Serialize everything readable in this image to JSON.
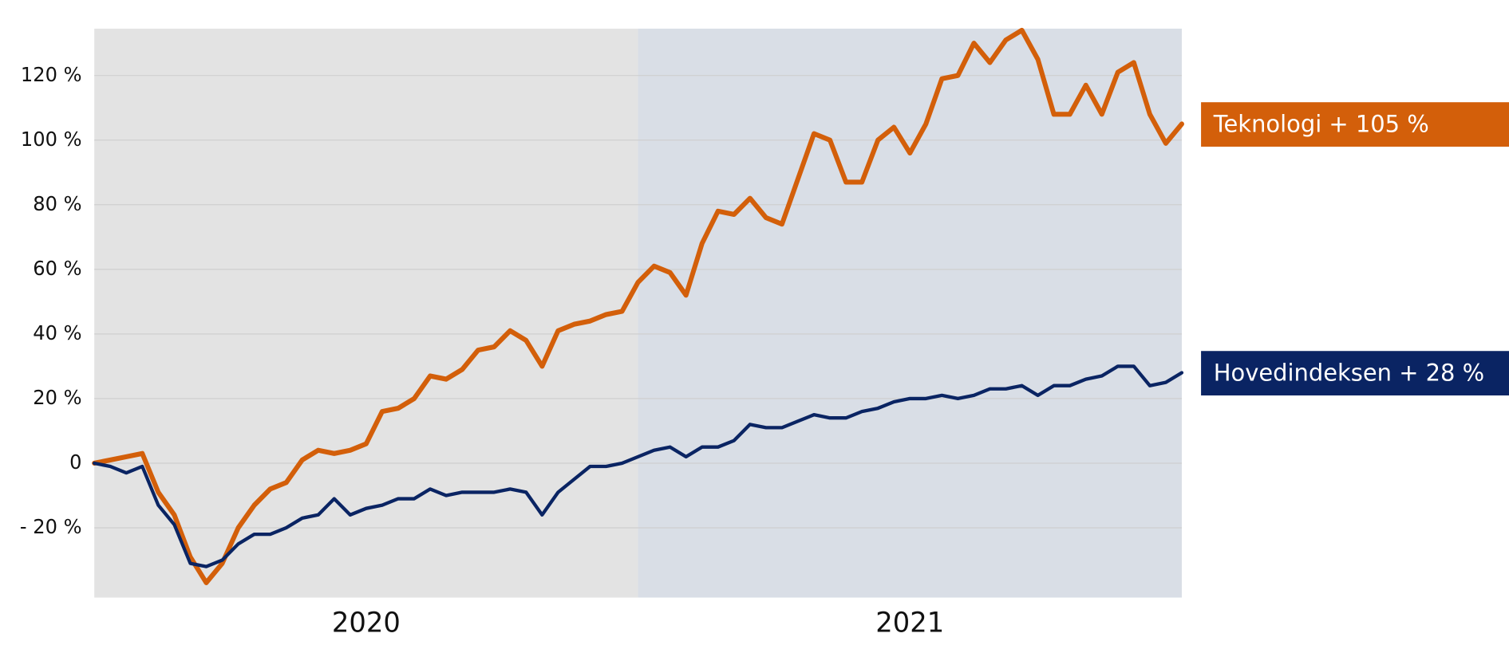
{
  "chart_data": {
    "type": "line",
    "periods": [
      {
        "label": "2020",
        "color": "#e3e3e3"
      },
      {
        "label": "2021",
        "color": "#d9dee6"
      }
    ],
    "series": [
      {
        "name": "Teknologi",
        "label": "Teknologi + 105 %",
        "color": "#d35f0a",
        "values": [
          0,
          1,
          2,
          3,
          -9,
          -16,
          -29,
          -37,
          -31,
          -20,
          -13,
          -8,
          -6,
          1,
          4,
          3,
          4,
          6,
          16,
          17,
          20,
          27,
          26,
          29,
          35,
          36,
          41,
          38,
          30,
          41,
          43,
          44,
          46,
          47,
          56,
          61,
          59,
          52,
          68,
          78,
          77,
          82,
          76,
          74,
          88,
          102,
          100,
          87,
          87,
          100,
          104,
          96,
          105,
          119,
          120,
          130,
          124,
          131,
          134,
          125,
          108,
          108,
          117,
          108,
          121,
          124,
          108,
          99,
          105
        ]
      },
      {
        "name": "Hovedindeksen",
        "label": "Hovedindeksen + 28 %",
        "color": "#0a2463",
        "values": [
          0,
          -1,
          -3,
          -1,
          -13,
          -19,
          -31,
          -32,
          -30,
          -25,
          -22,
          -22,
          -20,
          -17,
          -16,
          -11,
          -16,
          -14,
          -13,
          -11,
          -11,
          -8,
          -10,
          -9,
          -9,
          -9,
          -8,
          -9,
          -16,
          -9,
          -5,
          -1,
          -1,
          0,
          2,
          4,
          5,
          2,
          5,
          5,
          7,
          12,
          11,
          11,
          13,
          15,
          14,
          14,
          16,
          17,
          19,
          20,
          20,
          21,
          20,
          21,
          23,
          23,
          24,
          21,
          24,
          24,
          26,
          27,
          30,
          30,
          24,
          25,
          28
        ]
      }
    ],
    "ylim": [
      -41.6,
      134.5
    ],
    "yticks": [
      {
        "value": -20,
        "label": "- 20 %"
      },
      0,
      {
        "value": 20,
        "label": "20 %"
      },
      {
        "value": 40,
        "label": "40 %"
      },
      {
        "value": 60,
        "label": "60 %"
      },
      {
        "value": 80,
        "label": "80 %"
      },
      {
        "value": 100,
        "label": "100 %"
      },
      {
        "value": 120,
        "label": "120 %"
      }
    ],
    "grid": true
  }
}
